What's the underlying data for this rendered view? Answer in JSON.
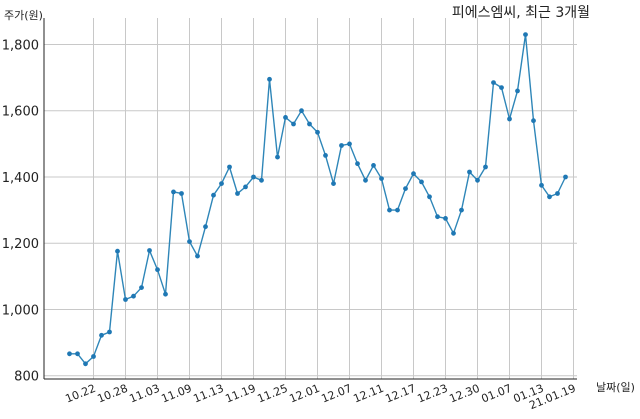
{
  "chart_data": {
    "type": "line",
    "title": "피에스엠씨, 최근 3개월",
    "ylabel": "주가(원)",
    "xlabel": "날짜(일)",
    "ylim": [
      790,
      1880
    ],
    "yticks": [
      800,
      1000,
      1200,
      1400,
      1600,
      1800
    ],
    "ytick_labels": [
      "800",
      "1,000",
      "1,200",
      "1,400",
      "1,600",
      "1,800"
    ],
    "grid": true,
    "xticks": [
      {
        "label": "10.22",
        "index": 3
      },
      {
        "label": "10.28",
        "index": 7
      },
      {
        "label": "11.03",
        "index": 11
      },
      {
        "label": "11.09",
        "index": 15
      },
      {
        "label": "11.13",
        "index": 19
      },
      {
        "label": "11.19",
        "index": 23
      },
      {
        "label": "11.25",
        "index": 27
      },
      {
        "label": "12.01",
        "index": 31
      },
      {
        "label": "12.07",
        "index": 35
      },
      {
        "label": "12.11",
        "index": 39
      },
      {
        "label": "12.17",
        "index": 43
      },
      {
        "label": "12.23",
        "index": 47
      },
      {
        "label": "12.30",
        "index": 51
      },
      {
        "label": "01.07",
        "index": 55
      },
      {
        "label": "01.13",
        "index": 59
      },
      {
        "label": "21.01.19",
        "index": 63
      }
    ],
    "values": [
      866,
      866,
      836,
      858,
      922,
      932,
      1176,
      1030,
      1040,
      1066,
      1178,
      1120,
      1046,
      1355,
      1350,
      1205,
      1161,
      1250,
      1345,
      1380,
      1430,
      1350,
      1370,
      1400,
      1390,
      1695,
      1460,
      1580,
      1560,
      1600,
      1560,
      1535,
      1465,
      1380,
      1495,
      1500,
      1440,
      1390,
      1435,
      1395,
      1300,
      1300,
      1365,
      1410,
      1385,
      1340,
      1280,
      1275,
      1230,
      1300,
      1415,
      1390,
      1430,
      1685,
      1670,
      1575,
      1660,
      1830,
      1570,
      1375,
      1340,
      1350,
      1400
    ]
  }
}
